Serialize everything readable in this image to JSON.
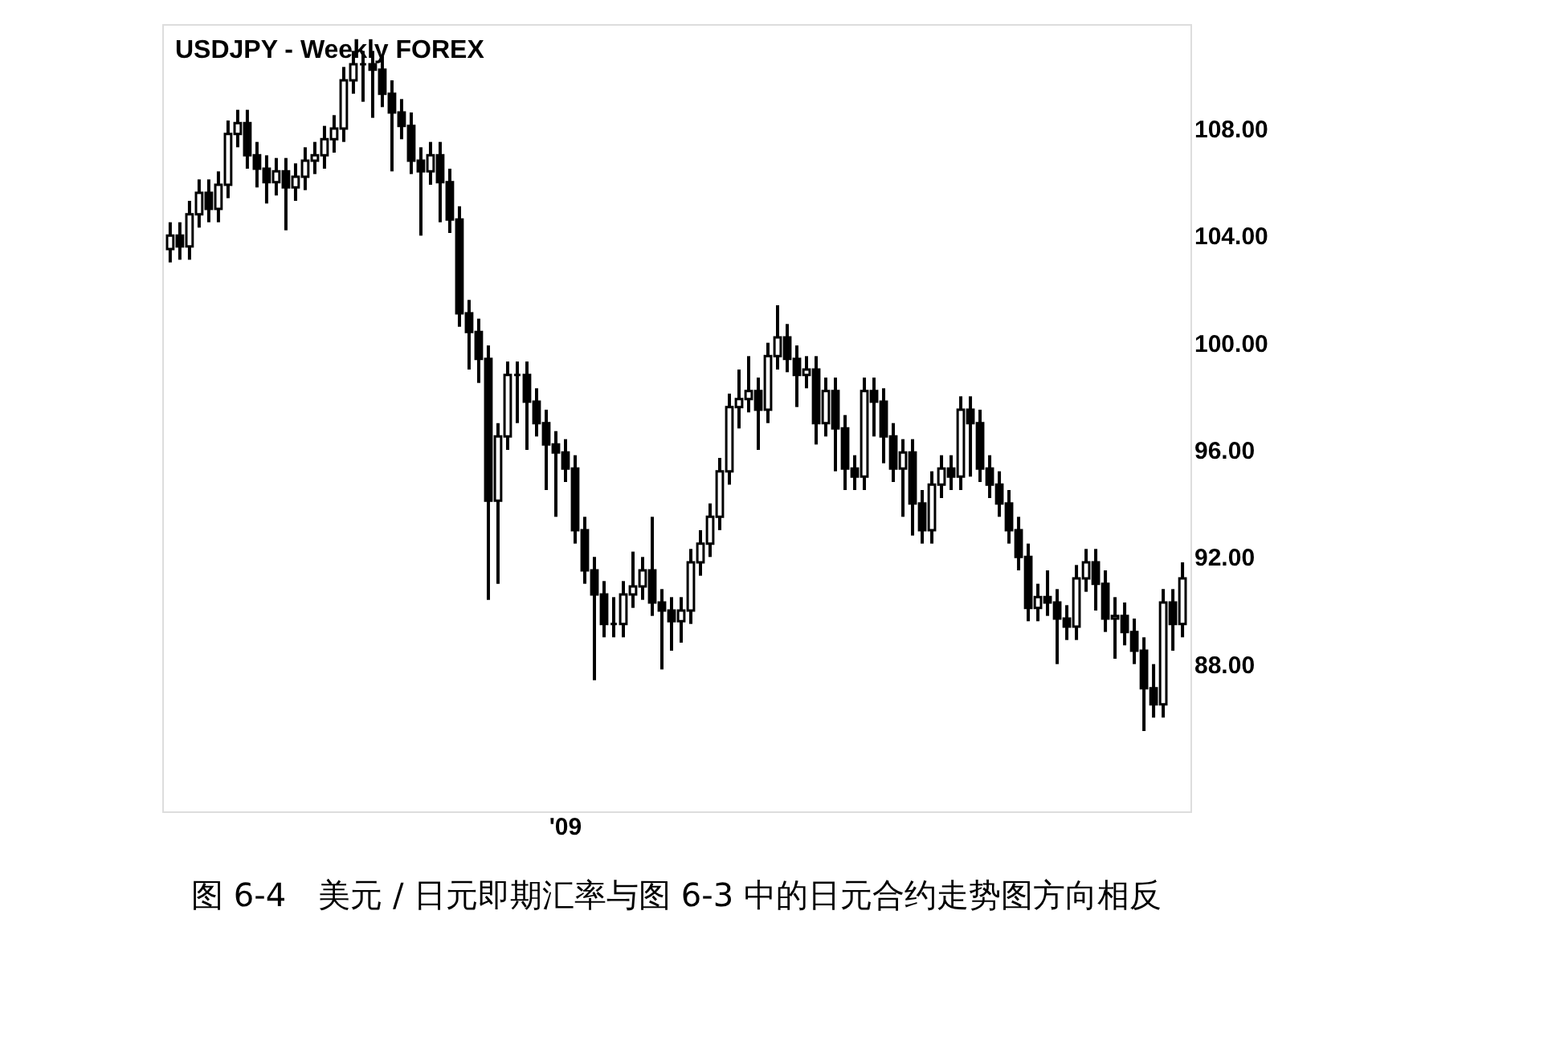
{
  "chart_data": {
    "type": "candlestick",
    "title": "USDJPY - Weekly FOREX",
    "categories": [
      null,
      null,
      null,
      null,
      null,
      null,
      null,
      null,
      null,
      null,
      null,
      null,
      null,
      null,
      null,
      null,
      null,
      null,
      null,
      null,
      null,
      null,
      null,
      null,
      null,
      null,
      null,
      null,
      null,
      null,
      null,
      null,
      null,
      null,
      null,
      null,
      null,
      null,
      null,
      null,
      null,
      "'09",
      null,
      null,
      null,
      null,
      null,
      null,
      null,
      null,
      null,
      null,
      null,
      null,
      null,
      null,
      null,
      null,
      null,
      null,
      null,
      null,
      null,
      null,
      null,
      null,
      null,
      null,
      null,
      null,
      null,
      null,
      null,
      null,
      null,
      null,
      null,
      null,
      null,
      null,
      null,
      null,
      null,
      null,
      null,
      null,
      null,
      null,
      null,
      null,
      null,
      null,
      null,
      null,
      null,
      null,
      null,
      null,
      null,
      null,
      null,
      null,
      null,
      null,
      null,
      null
    ],
    "ohlc": [
      [
        103.5,
        104.5,
        103.0,
        104.0
      ],
      [
        104.0,
        104.5,
        103.1,
        103.6
      ],
      [
        103.6,
        105.3,
        103.1,
        104.8
      ],
      [
        104.8,
        106.1,
        104.3,
        105.6
      ],
      [
        105.6,
        106.1,
        104.5,
        105.0
      ],
      [
        105.0,
        106.4,
        104.5,
        105.9
      ],
      [
        105.9,
        108.3,
        105.4,
        107.8
      ],
      [
        107.8,
        108.7,
        107.3,
        108.2
      ],
      [
        108.2,
        108.7,
        106.5,
        107.0
      ],
      [
        107.0,
        107.5,
        105.8,
        106.5
      ],
      [
        106.5,
        107.0,
        105.2,
        106.0
      ],
      [
        106.0,
        106.9,
        105.5,
        106.4
      ],
      [
        106.4,
        106.9,
        104.2,
        105.8
      ],
      [
        105.8,
        106.7,
        105.3,
        106.2
      ],
      [
        106.2,
        107.3,
        105.7,
        106.8
      ],
      [
        106.8,
        107.5,
        106.3,
        107.0
      ],
      [
        107.0,
        108.1,
        106.5,
        107.6
      ],
      [
        107.6,
        108.5,
        107.1,
        108.0
      ],
      [
        108.0,
        110.3,
        107.5,
        109.8
      ],
      [
        109.8,
        110.9,
        109.3,
        110.4
      ],
      [
        110.4,
        110.9,
        109.0,
        110.4
      ],
      [
        110.4,
        110.9,
        108.4,
        110.2
      ],
      [
        110.2,
        110.7,
        108.8,
        109.3
      ],
      [
        109.3,
        109.8,
        106.4,
        108.6
      ],
      [
        108.6,
        109.1,
        107.6,
        108.1
      ],
      [
        108.1,
        108.6,
        106.3,
        106.8
      ],
      [
        106.8,
        107.3,
        104.0,
        106.4
      ],
      [
        106.4,
        107.5,
        105.9,
        107.0
      ],
      [
        107.0,
        107.5,
        104.5,
        106.0
      ],
      [
        106.0,
        106.5,
        104.1,
        104.6
      ],
      [
        104.6,
        105.1,
        100.6,
        101.1
      ],
      [
        101.1,
        101.6,
        99.0,
        100.4
      ],
      [
        100.4,
        100.9,
        98.5,
        99.4
      ],
      [
        99.4,
        99.9,
        90.4,
        94.1
      ],
      [
        94.1,
        97.0,
        91.0,
        96.5
      ],
      [
        96.5,
        99.3,
        96.0,
        98.8
      ],
      [
        98.8,
        99.3,
        97.0,
        98.8
      ],
      [
        98.8,
        99.3,
        96.0,
        97.8
      ],
      [
        97.8,
        98.3,
        96.5,
        97.0
      ],
      [
        97.0,
        97.5,
        94.5,
        96.2
      ],
      [
        96.2,
        96.7,
        93.5,
        95.9
      ],
      [
        95.9,
        96.4,
        94.8,
        95.3
      ],
      [
        95.3,
        95.8,
        92.5,
        93.0
      ],
      [
        93.0,
        93.5,
        91.0,
        91.5
      ],
      [
        91.5,
        92.0,
        87.4,
        90.6
      ],
      [
        90.6,
        91.1,
        89.0,
        89.5
      ],
      [
        89.5,
        90.5,
        89.0,
        89.5
      ],
      [
        89.5,
        91.1,
        89.0,
        90.6
      ],
      [
        90.6,
        92.2,
        90.1,
        90.9
      ],
      [
        90.9,
        92.0,
        90.4,
        91.5
      ],
      [
        91.5,
        93.5,
        89.8,
        90.3
      ],
      [
        90.3,
        90.8,
        87.8,
        90.0
      ],
      [
        90.0,
        90.5,
        88.5,
        89.6
      ],
      [
        89.6,
        90.5,
        88.8,
        90.0
      ],
      [
        90.0,
        92.3,
        89.5,
        91.8
      ],
      [
        91.8,
        93.0,
        91.3,
        92.5
      ],
      [
        92.5,
        94.0,
        92.0,
        93.5
      ],
      [
        93.5,
        95.7,
        93.0,
        95.2
      ],
      [
        95.2,
        98.1,
        94.7,
        97.6
      ],
      [
        97.6,
        99.0,
        96.8,
        97.9
      ],
      [
        97.9,
        99.5,
        97.4,
        98.2
      ],
      [
        98.2,
        98.7,
        96.0,
        97.5
      ],
      [
        97.5,
        100.0,
        97.0,
        99.5
      ],
      [
        99.5,
        101.4,
        99.0,
        100.2
      ],
      [
        100.2,
        100.7,
        98.9,
        99.4
      ],
      [
        99.4,
        99.9,
        97.6,
        98.8
      ],
      [
        98.8,
        99.5,
        98.3,
        99.0
      ],
      [
        99.0,
        99.5,
        96.2,
        97.0
      ],
      [
        97.0,
        98.7,
        96.5,
        98.2
      ],
      [
        98.2,
        98.7,
        95.2,
        96.8
      ],
      [
        96.8,
        97.3,
        94.5,
        95.3
      ],
      [
        95.3,
        95.8,
        94.5,
        95.0
      ],
      [
        95.0,
        98.7,
        94.5,
        98.2
      ],
      [
        98.2,
        98.7,
        96.5,
        97.8
      ],
      [
        97.8,
        98.3,
        95.5,
        96.5
      ],
      [
        96.5,
        97.0,
        94.8,
        95.3
      ],
      [
        95.3,
        96.4,
        93.5,
        95.9
      ],
      [
        95.9,
        96.4,
        92.8,
        94.0
      ],
      [
        94.0,
        94.5,
        92.5,
        93.0
      ],
      [
        93.0,
        95.2,
        92.5,
        94.7
      ],
      [
        94.7,
        95.8,
        94.2,
        95.3
      ],
      [
        95.3,
        95.8,
        94.5,
        95.0
      ],
      [
        95.0,
        98.0,
        94.5,
        97.5
      ],
      [
        97.5,
        98.0,
        95.0,
        97.0
      ],
      [
        97.0,
        97.5,
        94.8,
        95.3
      ],
      [
        95.3,
        95.8,
        94.2,
        94.7
      ],
      [
        94.7,
        95.2,
        93.5,
        94.0
      ],
      [
        94.0,
        94.5,
        92.5,
        93.0
      ],
      [
        93.0,
        93.5,
        91.5,
        92.0
      ],
      [
        92.0,
        92.5,
        89.6,
        90.1
      ],
      [
        90.1,
        91.0,
        89.6,
        90.5
      ],
      [
        90.5,
        91.5,
        89.8,
        90.3
      ],
      [
        90.3,
        90.8,
        88.0,
        89.7
      ],
      [
        89.7,
        90.2,
        88.9,
        89.4
      ],
      [
        89.4,
        91.7,
        88.9,
        91.2
      ],
      [
        91.2,
        92.3,
        90.7,
        91.8
      ],
      [
        91.8,
        92.3,
        90.0,
        91.0
      ],
      [
        91.0,
        91.5,
        89.2,
        89.7
      ],
      [
        89.7,
        90.5,
        88.2,
        89.8
      ],
      [
        89.8,
        90.3,
        88.7,
        89.2
      ],
      [
        89.2,
        89.7,
        88.0,
        88.5
      ],
      [
        88.5,
        89.0,
        85.5,
        87.1
      ],
      [
        87.1,
        88.0,
        86.0,
        86.5
      ],
      [
        86.5,
        90.8,
        86.0,
        90.3
      ],
      [
        90.3,
        90.8,
        88.5,
        89.5
      ],
      [
        89.5,
        91.8,
        89.0,
        91.2
      ]
    ],
    "ylim": [
      82.5,
      111.9
    ],
    "yticks": [
      {
        "value": 88,
        "label": "88.00"
      },
      {
        "value": 92,
        "label": "92.00"
      },
      {
        "value": 96,
        "label": "96.00"
      },
      {
        "value": 100,
        "label": "100.00"
      },
      {
        "value": 104,
        "label": "104.00"
      },
      {
        "value": 108,
        "label": "108.00"
      }
    ],
    "grid": false,
    "annotations": [
      "图 6-4　美元 / 日元即期汇率与图 6-3 中的日元合约走势图方向相反"
    ]
  }
}
